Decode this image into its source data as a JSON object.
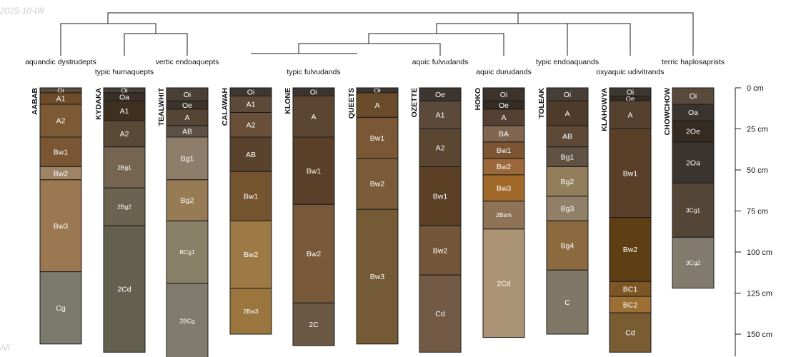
{
  "corner_date": "2025-10-08",
  "corner_note": "All",
  "colors": {
    "line": "#1a1a1a",
    "text_dark": "#111111",
    "text_light": "#ffffff"
  },
  "axis": {
    "unit": "cm",
    "max_depth_cm": 165,
    "ticks": [
      {
        "value": 0,
        "label": "0 cm"
      },
      {
        "value": 25,
        "label": "25 cm"
      },
      {
        "value": 50,
        "label": "50 cm"
      },
      {
        "value": 75,
        "label": "75 cm"
      },
      {
        "value": 100,
        "label": "100 cm"
      },
      {
        "value": 125,
        "label": "125 cm"
      },
      {
        "value": 150,
        "label": "150 cm"
      }
    ]
  },
  "taxonomy_labels": [
    {
      "id": "aquandic-dystrudepts",
      "text": "aquandic dystrudepts"
    },
    {
      "id": "typic-humaquepts",
      "text": "typic humaquepts"
    },
    {
      "id": "vertic-endoaquepts",
      "text": "vertic endoaquepts"
    },
    {
      "id": "typic-fulvudands",
      "text": "typic fulvudands"
    },
    {
      "id": "aquic-fulvudands",
      "text": "aquic fulvudands"
    },
    {
      "id": "aquic-durudands",
      "text": "aquic durudands"
    },
    {
      "id": "typic-endoaquands",
      "text": "typic endoaquands"
    },
    {
      "id": "oxyaquic-udivitrands",
      "text": "oxyaquic udivitrands"
    },
    {
      "id": "terric-haplosaprists",
      "text": "terric haplosaprists"
    }
  ],
  "profiles": [
    {
      "name": "AABAB",
      "horizons": [
        {
          "name": "Oi",
          "top": 0,
          "bottom": 3,
          "color": "#5a4a3c"
        },
        {
          "name": "A1",
          "top": 3,
          "bottom": 10,
          "color": "#6e4c2a"
        },
        {
          "name": "A2",
          "top": 10,
          "bottom": 30,
          "color": "#7d5a36"
        },
        {
          "name": "Bw1",
          "top": 30,
          "bottom": 48,
          "color": "#7a5634"
        },
        {
          "name": "Bw2",
          "top": 48,
          "bottom": 56,
          "color": "#9e8365"
        },
        {
          "name": "Bw3",
          "top": 56,
          "bottom": 112,
          "color": "#9b7752"
        },
        {
          "name": "Cg",
          "top": 112,
          "bottom": 156,
          "color": "#7b7a6c"
        }
      ]
    },
    {
      "name": "KYDAKA",
      "horizons": [
        {
          "name": "Oi",
          "top": 0,
          "bottom": 3,
          "color": "#463d33"
        },
        {
          "name": "Oa",
          "top": 3,
          "bottom": 8,
          "color": "#3a3028"
        },
        {
          "name": "A1",
          "top": 8,
          "bottom": 20,
          "color": "#40301f"
        },
        {
          "name": "A2",
          "top": 20,
          "bottom": 36,
          "color": "#5a4936"
        },
        {
          "name": "2Bg1",
          "top": 36,
          "bottom": 61,
          "color": "#756450"
        },
        {
          "name": "2Bg2",
          "top": 61,
          "bottom": 84,
          "color": "#6c6250"
        },
        {
          "name": "2Cd",
          "top": 84,
          "bottom": 161,
          "color": "#646050"
        }
      ]
    },
    {
      "name": "TEALWHIT",
      "horizons": [
        {
          "name": "Oi",
          "top": 0,
          "bottom": 8,
          "color": "#4a4036"
        },
        {
          "name": "Oe",
          "top": 8,
          "bottom": 13,
          "color": "#3e342b"
        },
        {
          "name": "A",
          "top": 13,
          "bottom": 23,
          "color": "#564535"
        },
        {
          "name": "AB",
          "top": 23,
          "bottom": 30,
          "color": "#5c4f44"
        },
        {
          "name": "Bg1",
          "top": 30,
          "bottom": 56,
          "color": "#8e7d69"
        },
        {
          "name": "Bg2",
          "top": 56,
          "bottom": 81,
          "color": "#967b54"
        },
        {
          "name": "BCg1",
          "top": 81,
          "bottom": 119,
          "color": "#898068"
        },
        {
          "name": "2BCg",
          "top": 119,
          "bottom": 165,
          "color": "#807b6c"
        }
      ]
    },
    {
      "name": "CALAWAH",
      "horizons": [
        {
          "name": "Oi",
          "top": 0,
          "bottom": 5,
          "color": "#3e3630"
        },
        {
          "name": "A1",
          "top": 5,
          "bottom": 15,
          "color": "#5e4a38"
        },
        {
          "name": "A2",
          "top": 15,
          "bottom": 30,
          "color": "#6a5038"
        },
        {
          "name": "AB",
          "top": 30,
          "bottom": 51,
          "color": "#5a432c"
        },
        {
          "name": "Bw1",
          "top": 51,
          "bottom": 81,
          "color": "#74552f"
        },
        {
          "name": "Bw2",
          "top": 81,
          "bottom": 122,
          "color": "#9d7a45"
        },
        {
          "name": "2Bw3",
          "top": 122,
          "bottom": 150,
          "color": "#9a763e"
        }
      ]
    },
    {
      "name": "KLONE",
      "horizons": [
        {
          "name": "Oi",
          "top": 0,
          "bottom": 5,
          "color": "#3c342d"
        },
        {
          "name": "A",
          "top": 5,
          "bottom": 30,
          "color": "#5c4632"
        },
        {
          "name": "Bw1",
          "top": 30,
          "bottom": 71,
          "color": "#5a4028"
        },
        {
          "name": "Bw2",
          "top": 71,
          "bottom": 131,
          "color": "#785a3a"
        },
        {
          "name": "2C",
          "top": 131,
          "bottom": 157,
          "color": "#6b5845"
        }
      ]
    },
    {
      "name": "QUEETS",
      "horizons": [
        {
          "name": "Oi",
          "top": 0,
          "bottom": 3,
          "color": "#3d3731"
        },
        {
          "name": "A",
          "top": 3,
          "bottom": 18,
          "color": "#6a4c2b"
        },
        {
          "name": "Bw1",
          "top": 18,
          "bottom": 43,
          "color": "#7a5835"
        },
        {
          "name": "Bw2",
          "top": 43,
          "bottom": 74,
          "color": "#7b5c38"
        },
        {
          "name": "Bw3",
          "top": 74,
          "bottom": 156,
          "color": "#745a35"
        }
      ]
    },
    {
      "name": "OZETTE",
      "horizons": [
        {
          "name": "Oe",
          "top": 0,
          "bottom": 8,
          "color": "#3c3530"
        },
        {
          "name": "A1",
          "top": 8,
          "bottom": 25,
          "color": "#5b4a3a"
        },
        {
          "name": "A2",
          "top": 25,
          "bottom": 48,
          "color": "#5a4631"
        },
        {
          "name": "Bw1",
          "top": 48,
          "bottom": 84,
          "color": "#5b4026"
        },
        {
          "name": "Bw2",
          "top": 84,
          "bottom": 114,
          "color": "#73563a"
        },
        {
          "name": "Cd",
          "top": 114,
          "bottom": 161,
          "color": "#735a44"
        }
      ]
    },
    {
      "name": "HOKO",
      "horizons": [
        {
          "name": "Oi",
          "top": 0,
          "bottom": 8,
          "color": "#3c342d"
        },
        {
          "name": "Oe",
          "top": 8,
          "bottom": 13,
          "color": "#352c25"
        },
        {
          "name": "A",
          "top": 13,
          "bottom": 23,
          "color": "#554033"
        },
        {
          "name": "BA",
          "top": 23,
          "bottom": 33,
          "color": "#806550"
        },
        {
          "name": "Bw1",
          "top": 33,
          "bottom": 43,
          "color": "#7c5532"
        },
        {
          "name": "Bw2",
          "top": 43,
          "bottom": 53,
          "color": "#9a683a"
        },
        {
          "name": "Bw3",
          "top": 53,
          "bottom": 69,
          "color": "#a0692a"
        },
        {
          "name": "2Bsm",
          "top": 69,
          "bottom": 86,
          "color": "#8f7356"
        },
        {
          "name": "2Cd",
          "top": 86,
          "bottom": 152,
          "color": "#ab9376"
        }
      ]
    },
    {
      "name": "TOLEAK",
      "horizons": [
        {
          "name": "Oi",
          "top": 0,
          "bottom": 8,
          "color": "#473f37"
        },
        {
          "name": "A",
          "top": 8,
          "bottom": 23,
          "color": "#4e3b2a"
        },
        {
          "name": "AB",
          "top": 23,
          "bottom": 36,
          "color": "#5e4a36"
        },
        {
          "name": "Bg1",
          "top": 36,
          "bottom": 48,
          "color": "#5f5242"
        },
        {
          "name": "Bg2",
          "top": 48,
          "bottom": 66,
          "color": "#937e5c"
        },
        {
          "name": "Bg3",
          "top": 66,
          "bottom": 81,
          "color": "#8f8067"
        },
        {
          "name": "Bg4",
          "top": 81,
          "bottom": 111,
          "color": "#8a6a3e"
        },
        {
          "name": "C",
          "top": 111,
          "bottom": 150,
          "color": "#7f7866"
        }
      ]
    },
    {
      "name": "KLAHOWYA",
      "horizons": [
        {
          "name": "Oi",
          "top": 0,
          "bottom": 5,
          "color": "#3e3731"
        },
        {
          "name": "Oe",
          "top": 5,
          "bottom": 8,
          "color": "#332b25"
        },
        {
          "name": "A",
          "top": 8,
          "bottom": 25,
          "color": "#55412e"
        },
        {
          "name": "Bw1",
          "top": 25,
          "bottom": 79,
          "color": "#5a4028"
        },
        {
          "name": "Bw2",
          "top": 79,
          "bottom": 118,
          "color": "#5e3f14"
        },
        {
          "name": "BC1",
          "top": 118,
          "bottom": 127,
          "color": "#7d5625"
        },
        {
          "name": "BC2",
          "top": 127,
          "bottom": 137,
          "color": "#9c6f35"
        },
        {
          "name": "Cd",
          "top": 137,
          "bottom": 161,
          "color": "#7a5c33"
        }
      ]
    },
    {
      "name": "CHOWCHOW",
      "horizons": [
        {
          "name": "Oi",
          "top": 0,
          "bottom": 10,
          "color": "#5a4a3c"
        },
        {
          "name": "Oa",
          "top": 10,
          "bottom": 20,
          "color": "#3a332e"
        },
        {
          "name": "2Oe",
          "top": 20,
          "bottom": 33,
          "color": "#352b22"
        },
        {
          "name": "2Oa",
          "top": 33,
          "bottom": 58,
          "color": "#3a332e"
        },
        {
          "name": "3Cg1",
          "top": 58,
          "bottom": 91,
          "color": "#544637"
        },
        {
          "name": "3Cg2",
          "top": 91,
          "bottom": 122,
          "color": "#827b6d"
        }
      ]
    }
  ]
}
